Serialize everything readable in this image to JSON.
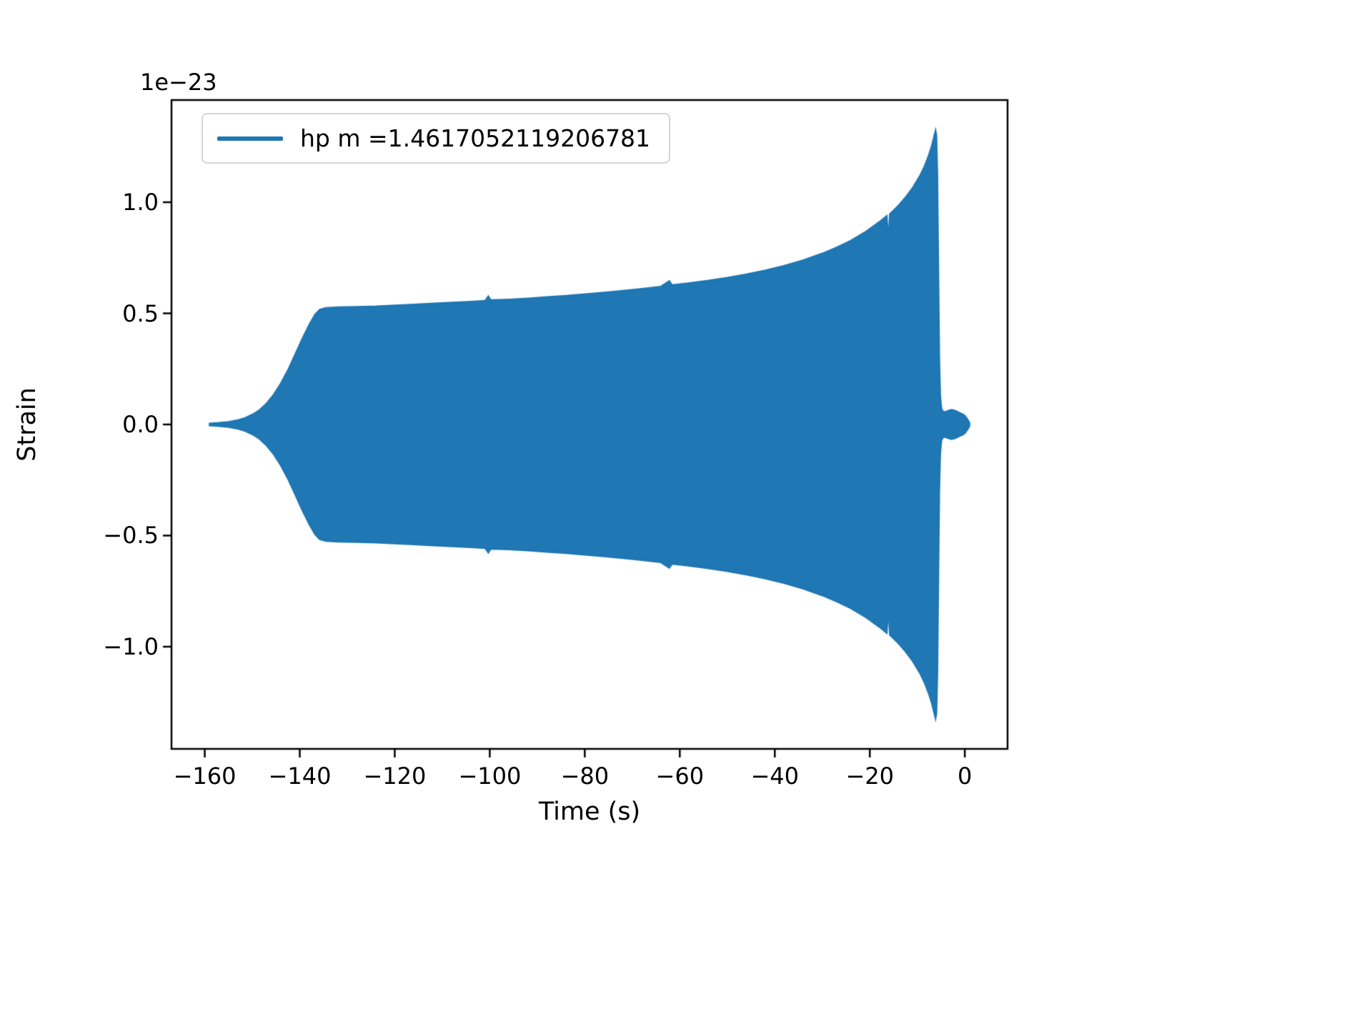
{
  "figure": {
    "background": "#ffffff"
  },
  "chart_data": {
    "type": "line",
    "title": "",
    "xlabel": "Time (s)",
    "ylabel": "Strain",
    "y_offset_text": "1e−23",
    "xlim": [
      -167,
      9
    ],
    "ylim": [
      -1.46,
      1.46
    ],
    "xticks": [
      -160,
      -140,
      -120,
      -100,
      -80,
      -60,
      -40,
      -20,
      0
    ],
    "xtick_labels": [
      "−160",
      "−140",
      "−120",
      "−100",
      "−80",
      "−60",
      "−40",
      "−20",
      "0"
    ],
    "yticks": [
      -1.0,
      -0.5,
      0.0,
      0.5,
      1.0
    ],
    "ytick_labels": [
      "−1.0",
      "−0.5",
      "0.0",
      "0.5",
      "1.0"
    ],
    "grid": false,
    "legend": {
      "location": "upper left",
      "entries": [
        {
          "label": "hp m =1.4617052119206781",
          "color": "#1f77b4",
          "style": "line"
        }
      ]
    },
    "series": [
      {
        "name": "hp m =1.4617052119206781",
        "color": "#1f77b4",
        "representation": "amplitude-envelope",
        "units_multiplier": "1e-23",
        "envelope": [
          [
            -159.0,
            0.005
          ],
          [
            -157.0,
            0.008
          ],
          [
            -155.0,
            0.012
          ],
          [
            -153.0,
            0.02
          ],
          [
            -151.5,
            0.03
          ],
          [
            -150.0,
            0.045
          ],
          [
            -148.5,
            0.065
          ],
          [
            -147.0,
            0.095
          ],
          [
            -145.5,
            0.135
          ],
          [
            -144.0,
            0.185
          ],
          [
            -142.5,
            0.245
          ],
          [
            -141.0,
            0.315
          ],
          [
            -139.5,
            0.385
          ],
          [
            -138.0,
            0.45
          ],
          [
            -136.8,
            0.495
          ],
          [
            -135.8,
            0.517
          ],
          [
            -134.5,
            0.525
          ],
          [
            -132.0,
            0.528
          ],
          [
            -128.0,
            0.53
          ],
          [
            -124.0,
            0.532
          ],
          [
            -120.0,
            0.536
          ],
          [
            -116.0,
            0.54
          ],
          [
            -112.0,
            0.545
          ],
          [
            -108.0,
            0.549
          ],
          [
            -104.0,
            0.553
          ],
          [
            -101.0,
            0.557
          ],
          [
            -100.3,
            0.578
          ],
          [
            -99.8,
            0.56
          ],
          [
            -96.0,
            0.563
          ],
          [
            -92.0,
            0.568
          ],
          [
            -88.0,
            0.574
          ],
          [
            -84.0,
            0.58
          ],
          [
            -80.0,
            0.587
          ],
          [
            -76.0,
            0.594
          ],
          [
            -72.0,
            0.602
          ],
          [
            -68.0,
            0.611
          ],
          [
            -64.0,
            0.621
          ],
          [
            -62.2,
            0.646
          ],
          [
            -61.6,
            0.628
          ],
          [
            -58.0,
            0.637
          ],
          [
            -54.0,
            0.648
          ],
          [
            -50.0,
            0.661
          ],
          [
            -46.0,
            0.676
          ],
          [
            -42.0,
            0.694
          ],
          [
            -38.0,
            0.715
          ],
          [
            -34.0,
            0.74
          ],
          [
            -30.0,
            0.77
          ],
          [
            -27.0,
            0.797
          ],
          [
            -24.0,
            0.828
          ],
          [
            -21.0,
            0.866
          ],
          [
            -18.0,
            0.912
          ],
          [
            -16.4,
            0.94
          ],
          [
            -16.1,
            0.83
          ],
          [
            -15.8,
            0.947
          ],
          [
            -14.0,
            0.985
          ],
          [
            -12.5,
            1.022
          ],
          [
            -11.0,
            1.065
          ],
          [
            -9.5,
            1.118
          ],
          [
            -8.5,
            1.162
          ],
          [
            -7.6,
            1.212
          ],
          [
            -7.0,
            1.252
          ],
          [
            -6.5,
            1.295
          ],
          [
            -6.15,
            1.325
          ],
          [
            -5.95,
            1.3
          ],
          [
            -5.75,
            1.12
          ],
          [
            -5.55,
            0.7
          ],
          [
            -5.35,
            0.3
          ],
          [
            -5.15,
            0.13
          ],
          [
            -4.9,
            0.072
          ],
          [
            -4.5,
            0.056
          ],
          [
            -4.0,
            0.058
          ],
          [
            -3.4,
            0.063
          ],
          [
            -2.8,
            0.067
          ],
          [
            -2.2,
            0.064
          ],
          [
            -1.6,
            0.058
          ],
          [
            -1.0,
            0.052
          ],
          [
            -0.4,
            0.046
          ],
          [
            0.1,
            0.038
          ],
          [
            0.6,
            0.022
          ],
          [
            1.0,
            0.008
          ]
        ]
      }
    ]
  }
}
